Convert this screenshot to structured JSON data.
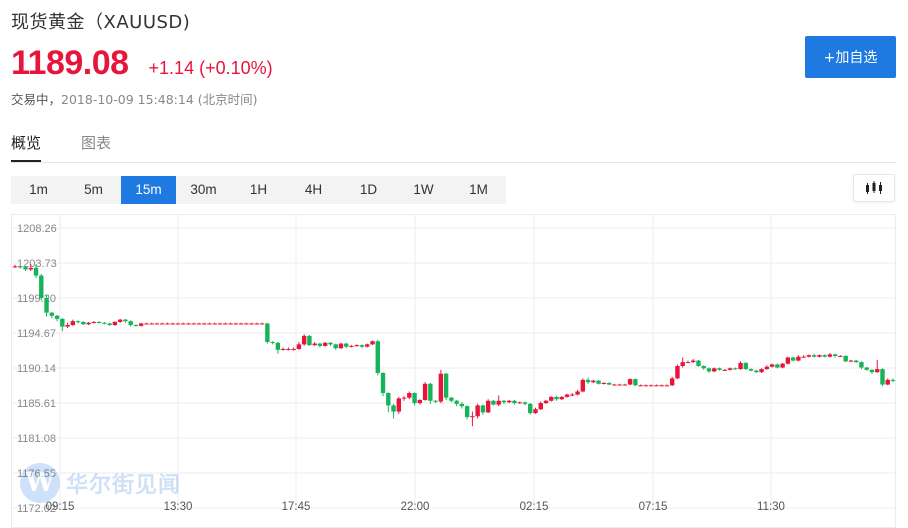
{
  "header": {
    "title": "现货黄金（XAUUSD)",
    "price": "1189.08",
    "change": "+1.14 (+0.10%)",
    "status": "交易中，",
    "timestamp": "2018-10-09 15:48:14 (北京时间)",
    "add_button": "+加自选"
  },
  "tabs": [
    {
      "label": "概览",
      "active": true
    },
    {
      "label": "图表",
      "active": false
    }
  ],
  "periods": [
    {
      "label": "1m",
      "active": false
    },
    {
      "label": "5m",
      "active": false
    },
    {
      "label": "15m",
      "active": true
    },
    {
      "label": "30m",
      "active": false
    },
    {
      "label": "1H",
      "active": false
    },
    {
      "label": "4H",
      "active": false
    },
    {
      "label": "1D",
      "active": false
    },
    {
      "label": "1W",
      "active": false
    },
    {
      "label": "1M",
      "active": false
    }
  ],
  "icons": {
    "chart_type": "candlestick-icon"
  },
  "colors": {
    "up": "#e8153a",
    "down": "#16b45a",
    "accent": "#1e7ae0"
  },
  "watermark": {
    "logo": "W",
    "text": "华尔街见闻"
  },
  "chart_data": {
    "type": "candlestick",
    "y_ticks": [
      "1208.26",
      "1203.73",
      "1199.20",
      "1194.67",
      "1190.14",
      "1185.61",
      "1181.08",
      "1176.55",
      "1172.02"
    ],
    "x_ticks": [
      "09:15",
      "13:30",
      "17:45",
      "22:00",
      "02:15",
      "07:15",
      "11:30"
    ],
    "ylim": [
      1172.02,
      1208.26
    ],
    "grid": true,
    "candles": [
      [
        1203.3,
        1203.3,
        1203.5,
        1203.1
      ],
      [
        1203.3,
        1203.2,
        1203.4,
        1203.0
      ],
      [
        1203.2,
        1202.9,
        1203.3,
        1202.7
      ],
      [
        1202.9,
        1203.1,
        1203.6,
        1202.7
      ],
      [
        1203.1,
        1202.1,
        1203.6,
        1201.8
      ],
      [
        1202.1,
        1199.2,
        1202.3,
        1198.9
      ],
      [
        1199.2,
        1197.3,
        1199.6,
        1196.8
      ],
      [
        1197.3,
        1196.9,
        1197.4,
        1196.6
      ],
      [
        1196.9,
        1196.5,
        1197.0,
        1196.2
      ],
      [
        1196.5,
        1195.5,
        1196.6,
        1194.9
      ],
      [
        1195.5,
        1195.7,
        1196.0,
        1195.3
      ],
      [
        1195.7,
        1196.2,
        1196.4,
        1195.6
      ],
      [
        1196.2,
        1196.1,
        1196.3,
        1195.9
      ],
      [
        1196.1,
        1195.8,
        1196.2,
        1195.7
      ],
      [
        1195.8,
        1196.0,
        1196.1,
        1195.7
      ],
      [
        1196.0,
        1196.1,
        1196.2,
        1195.9
      ],
      [
        1196.1,
        1196.0,
        1196.2,
        1195.9
      ],
      [
        1196.0,
        1195.9,
        1196.1,
        1195.8
      ],
      [
        1195.9,
        1195.7,
        1196.0,
        1195.6
      ],
      [
        1195.7,
        1196.1,
        1196.2,
        1195.6
      ],
      [
        1196.1,
        1196.4,
        1196.5,
        1196.0
      ],
      [
        1196.4,
        1196.2,
        1196.5,
        1196.0
      ],
      [
        1196.2,
        1195.7,
        1196.3,
        1195.5
      ],
      [
        1195.7,
        1195.6,
        1195.8,
        1195.5
      ],
      [
        1195.6,
        1195.9,
        1196.0,
        1195.5
      ],
      [
        1195.9,
        1195.9,
        1196.0,
        1195.8
      ],
      [
        1195.9,
        1195.9,
        1196.0,
        1195.8
      ],
      [
        1195.9,
        1195.9,
        1196.0,
        1195.8
      ],
      [
        1195.9,
        1195.9,
        1196.0,
        1195.8
      ],
      [
        1195.9,
        1195.9,
        1196.0,
        1195.8
      ],
      [
        1195.9,
        1195.9,
        1196.0,
        1195.8
      ],
      [
        1195.9,
        1195.9,
        1196.0,
        1195.8
      ],
      [
        1195.9,
        1195.9,
        1196.0,
        1195.8
      ],
      [
        1195.9,
        1195.9,
        1196.0,
        1195.8
      ],
      [
        1195.9,
        1195.9,
        1196.0,
        1195.8
      ],
      [
        1195.9,
        1195.9,
        1196.0,
        1195.8
      ],
      [
        1195.9,
        1195.9,
        1196.0,
        1195.8
      ],
      [
        1195.9,
        1195.9,
        1196.0,
        1195.8
      ],
      [
        1195.9,
        1195.9,
        1196.0,
        1195.8
      ],
      [
        1195.9,
        1195.9,
        1196.0,
        1195.8
      ],
      [
        1195.9,
        1195.9,
        1196.0,
        1195.8
      ],
      [
        1195.9,
        1195.9,
        1196.0,
        1195.8
      ],
      [
        1195.9,
        1195.9,
        1196.0,
        1195.8
      ],
      [
        1195.9,
        1195.9,
        1196.0,
        1195.8
      ],
      [
        1195.9,
        1195.9,
        1196.0,
        1195.8
      ],
      [
        1195.9,
        1195.9,
        1196.0,
        1195.8
      ],
      [
        1195.9,
        1195.9,
        1196.0,
        1195.8
      ],
      [
        1195.9,
        1195.9,
        1196.0,
        1195.8
      ],
      [
        1195.9,
        1193.5,
        1196.0,
        1193.3
      ],
      [
        1193.5,
        1193.4,
        1193.6,
        1193.2
      ],
      [
        1193.4,
        1192.5,
        1193.5,
        1192.0
      ],
      [
        1192.5,
        1192.6,
        1192.8,
        1192.4
      ],
      [
        1192.6,
        1192.6,
        1192.8,
        1192.4
      ],
      [
        1192.6,
        1192.6,
        1192.8,
        1192.4
      ],
      [
        1192.6,
        1193.2,
        1193.5,
        1192.5
      ],
      [
        1193.2,
        1194.3,
        1194.5,
        1193.0
      ],
      [
        1194.3,
        1193.1,
        1194.4,
        1193.0
      ],
      [
        1193.1,
        1193.3,
        1193.5,
        1193.0
      ],
      [
        1193.3,
        1193.0,
        1193.4,
        1192.8
      ],
      [
        1193.0,
        1193.4,
        1193.5,
        1192.9
      ],
      [
        1193.4,
        1193.2,
        1193.5,
        1193.0
      ],
      [
        1193.2,
        1192.7,
        1193.3,
        1192.5
      ],
      [
        1192.7,
        1193.3,
        1193.4,
        1192.6
      ],
      [
        1193.3,
        1192.9,
        1193.4,
        1192.7
      ],
      [
        1192.9,
        1193.0,
        1193.1,
        1192.8
      ],
      [
        1193.0,
        1193.1,
        1193.2,
        1192.9
      ],
      [
        1193.1,
        1192.9,
        1193.2,
        1192.7
      ],
      [
        1192.9,
        1193.2,
        1193.3,
        1192.8
      ],
      [
        1193.2,
        1193.6,
        1193.7,
        1193.1
      ],
      [
        1193.6,
        1189.5,
        1193.8,
        1189.2
      ],
      [
        1189.5,
        1186.9,
        1189.6,
        1186.5
      ],
      [
        1186.9,
        1185.3,
        1187.0,
        1184.4
      ],
      [
        1185.3,
        1184.5,
        1185.5,
        1183.6
      ],
      [
        1184.5,
        1186.2,
        1186.4,
        1184.2
      ],
      [
        1186.2,
        1186.3,
        1186.5,
        1185.9
      ],
      [
        1186.3,
        1186.9,
        1187.1,
        1186.1
      ],
      [
        1186.9,
        1185.6,
        1187.0,
        1185.3
      ],
      [
        1185.6,
        1186.0,
        1186.1,
        1185.4
      ],
      [
        1186.0,
        1188.1,
        1188.3,
        1185.9
      ],
      [
        1188.1,
        1185.9,
        1188.2,
        1185.5
      ],
      [
        1185.9,
        1185.8,
        1186.0,
        1185.6
      ],
      [
        1185.8,
        1189.4,
        1189.9,
        1185.6
      ],
      [
        1189.4,
        1186.3,
        1189.5,
        1186.0
      ],
      [
        1186.3,
        1185.9,
        1186.4,
        1185.7
      ],
      [
        1185.9,
        1185.5,
        1186.0,
        1185.2
      ],
      [
        1185.5,
        1185.2,
        1185.7,
        1184.9
      ],
      [
        1185.2,
        1183.8,
        1185.3,
        1183.5
      ],
      [
        1183.8,
        1183.9,
        1184.5,
        1182.6
      ],
      [
        1183.9,
        1185.3,
        1185.5,
        1183.6
      ],
      [
        1185.3,
        1184.4,
        1185.4,
        1184.1
      ],
      [
        1184.4,
        1185.9,
        1186.1,
        1184.3
      ],
      [
        1185.9,
        1185.4,
        1186.0,
        1185.3
      ],
      [
        1185.4,
        1185.9,
        1186.6,
        1185.2
      ],
      [
        1185.9,
        1185.7,
        1186.0,
        1185.5
      ],
      [
        1185.7,
        1185.9,
        1186.0,
        1185.6
      ],
      [
        1185.9,
        1185.6,
        1186.0,
        1185.4
      ],
      [
        1185.6,
        1185.7,
        1185.8,
        1185.5
      ],
      [
        1185.7,
        1185.5,
        1185.8,
        1185.3
      ],
      [
        1185.5,
        1184.3,
        1185.6,
        1184.1
      ],
      [
        1184.3,
        1184.8,
        1185.0,
        1184.2
      ],
      [
        1184.8,
        1185.6,
        1185.8,
        1184.7
      ],
      [
        1185.6,
        1185.9,
        1186.0,
        1185.5
      ],
      [
        1185.9,
        1186.4,
        1186.5,
        1185.8
      ],
      [
        1186.4,
        1186.1,
        1186.5,
        1185.9
      ],
      [
        1186.1,
        1186.4,
        1186.5,
        1186.0
      ],
      [
        1186.4,
        1186.7,
        1186.8,
        1186.3
      ],
      [
        1186.7,
        1186.7,
        1186.9,
        1186.5
      ],
      [
        1186.7,
        1187.1,
        1187.3,
        1186.6
      ],
      [
        1187.1,
        1188.6,
        1188.8,
        1187.0
      ],
      [
        1188.6,
        1188.3,
        1188.9,
        1188.1
      ],
      [
        1188.3,
        1188.5,
        1188.6,
        1188.2
      ],
      [
        1188.5,
        1188.1,
        1188.6,
        1188.0
      ],
      [
        1188.1,
        1188.2,
        1188.3,
        1188.0
      ],
      [
        1188.2,
        1188.0,
        1188.3,
        1187.9
      ],
      [
        1188.0,
        1188.0,
        1188.1,
        1187.9
      ],
      [
        1188.0,
        1188.0,
        1188.1,
        1187.9
      ],
      [
        1188.0,
        1188.0,
        1188.1,
        1187.9
      ],
      [
        1188.0,
        1188.7,
        1188.8,
        1187.9
      ],
      [
        1188.7,
        1187.9,
        1188.8,
        1187.8
      ],
      [
        1187.9,
        1187.9,
        1188.0,
        1187.8
      ],
      [
        1187.9,
        1187.9,
        1188.0,
        1187.8
      ],
      [
        1187.9,
        1187.9,
        1188.0,
        1187.8
      ],
      [
        1187.9,
        1187.9,
        1188.0,
        1187.8
      ],
      [
        1187.9,
        1187.9,
        1188.0,
        1187.8
      ],
      [
        1187.9,
        1187.9,
        1188.0,
        1187.8
      ],
      [
        1187.9,
        1188.8,
        1189.0,
        1187.8
      ],
      [
        1188.8,
        1190.4,
        1190.6,
        1188.7
      ],
      [
        1190.4,
        1190.9,
        1191.5,
        1190.2
      ],
      [
        1190.9,
        1190.9,
        1191.1,
        1190.8
      ],
      [
        1190.9,
        1191.1,
        1191.3,
        1190.8
      ],
      [
        1191.1,
        1190.4,
        1191.2,
        1190.3
      ],
      [
        1190.4,
        1190.1,
        1190.5,
        1189.9
      ],
      [
        1190.1,
        1189.7,
        1190.2,
        1189.5
      ],
      [
        1189.7,
        1190.1,
        1190.2,
        1189.6
      ],
      [
        1190.1,
        1189.9,
        1190.2,
        1189.8
      ],
      [
        1189.9,
        1189.9,
        1190.0,
        1189.8
      ],
      [
        1189.9,
        1190.1,
        1190.2,
        1189.8
      ],
      [
        1190.1,
        1190.0,
        1190.2,
        1189.9
      ],
      [
        1190.0,
        1190.8,
        1191.0,
        1189.9
      ],
      [
        1190.8,
        1190.0,
        1190.9,
        1189.9
      ],
      [
        1190.0,
        1189.8,
        1190.1,
        1189.7
      ],
      [
        1189.8,
        1189.6,
        1189.9,
        1189.5
      ],
      [
        1189.6,
        1190.0,
        1190.1,
        1189.5
      ],
      [
        1190.0,
        1190.3,
        1190.5,
        1189.9
      ],
      [
        1190.3,
        1190.6,
        1190.7,
        1190.2
      ],
      [
        1190.6,
        1190.2,
        1190.7,
        1190.1
      ],
      [
        1190.2,
        1190.7,
        1190.8,
        1190.1
      ],
      [
        1190.7,
        1191.5,
        1191.6,
        1190.6
      ],
      [
        1191.5,
        1191.1,
        1191.6,
        1191.0
      ],
      [
        1191.1,
        1191.6,
        1191.8,
        1191.0
      ],
      [
        1191.6,
        1191.6,
        1191.8,
        1191.5
      ],
      [
        1191.6,
        1191.8,
        1191.9,
        1191.5
      ],
      [
        1191.8,
        1191.6,
        1192.0,
        1191.5
      ],
      [
        1191.6,
        1191.8,
        1191.9,
        1191.5
      ],
      [
        1191.8,
        1191.6,
        1191.9,
        1191.5
      ],
      [
        1191.6,
        1191.9,
        1192.1,
        1191.5
      ],
      [
        1191.9,
        1191.7,
        1192.0,
        1191.5
      ],
      [
        1191.7,
        1191.7,
        1191.8,
        1191.6
      ],
      [
        1191.7,
        1191.0,
        1191.8,
        1190.9
      ],
      [
        1191.0,
        1191.1,
        1191.2,
        1190.9
      ],
      [
        1191.1,
        1190.9,
        1191.2,
        1190.8
      ],
      [
        1190.9,
        1190.2,
        1191.0,
        1190.0
      ],
      [
        1190.2,
        1189.9,
        1190.3,
        1189.8
      ],
      [
        1189.9,
        1189.6,
        1190.0,
        1189.4
      ],
      [
        1189.6,
        1190.0,
        1191.2,
        1189.5
      ],
      [
        1190.0,
        1188.0,
        1190.1,
        1187.8
      ],
      [
        1188.0,
        1188.6,
        1188.8,
        1187.9
      ],
      [
        1188.6,
        1188.5,
        1188.8,
        1188.3
      ]
    ]
  }
}
